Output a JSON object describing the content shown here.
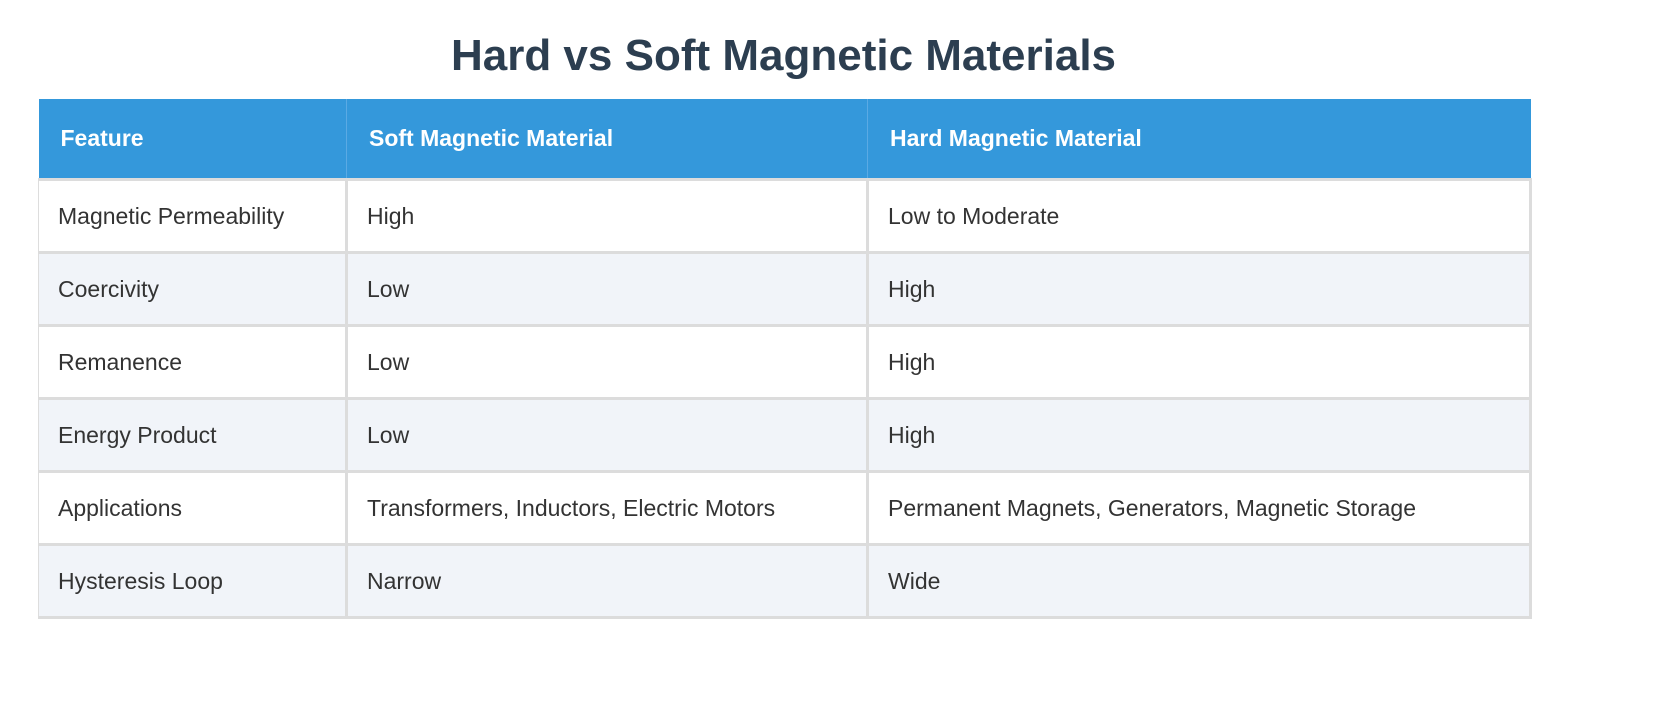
{
  "title": "Hard vs Soft Magnetic Materials",
  "colors": {
    "header_bg": "#3498db",
    "title": "#2c3e50",
    "alt_row": "#f1f4f9"
  },
  "table": {
    "headers": [
      "Feature",
      "Soft Magnetic Material",
      "Hard Magnetic Material"
    ],
    "rows": [
      [
        "Magnetic Permeability",
        "High",
        "Low to Moderate"
      ],
      [
        "Coercivity",
        "Low",
        "High"
      ],
      [
        "Remanence",
        "Low",
        "High"
      ],
      [
        "Energy Product",
        "Low",
        "High"
      ],
      [
        "Applications",
        "Transformers, Inductors, Electric Motors",
        "Permanent Magnets, Generators, Magnetic Storage"
      ],
      [
        "Hysteresis Loop",
        "Narrow",
        "Wide"
      ]
    ]
  }
}
